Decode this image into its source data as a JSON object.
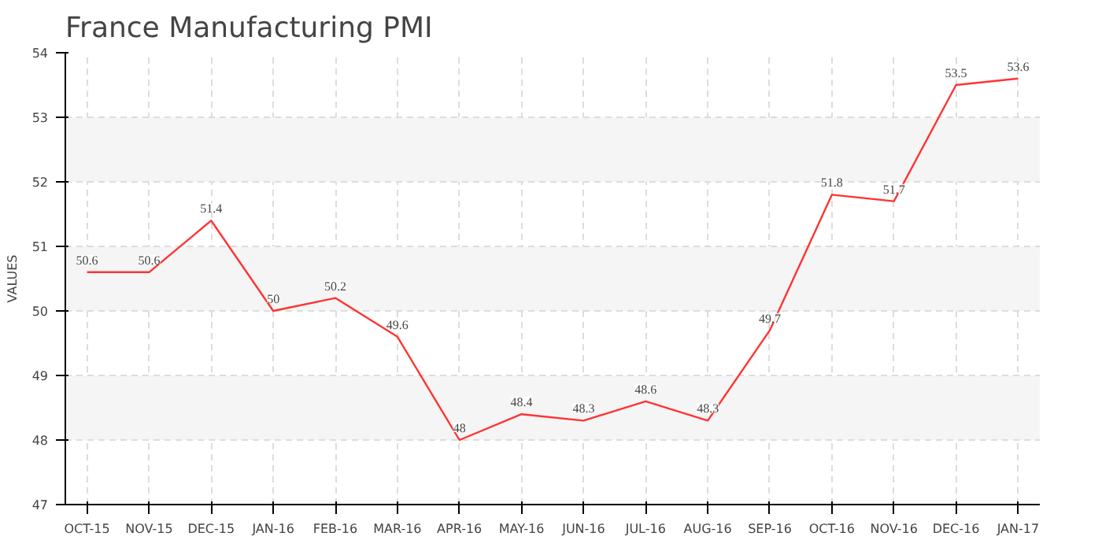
{
  "chart_data": {
    "type": "line",
    "title": "France Manufacturing PMI",
    "ylabel": "VALUES",
    "categories": [
      "OCT-15",
      "NOV-15",
      "DEC-15",
      "JAN-16",
      "FEB-16",
      "MAR-16",
      "APR-16",
      "MAY-16",
      "JUN-16",
      "JUL-16",
      "AUG-16",
      "SEP-16",
      "OCT-16",
      "NOV-16",
      "DEC-16",
      "JAN-17"
    ],
    "series": [
      {
        "color": "#ff3333",
        "values": [
          50.6,
          50.6,
          51.4,
          50,
          50.2,
          49.6,
          48,
          48.4,
          48.3,
          48.6,
          48.3,
          49.7,
          51.8,
          51.7,
          53.5,
          53.6
        ]
      }
    ],
    "ylim": [
      47,
      54
    ],
    "yticks": [
      47,
      48,
      49,
      50,
      51,
      52,
      53,
      54
    ],
    "grid": true,
    "data_labels": true,
    "marker": "none",
    "line_style": "solid"
  }
}
